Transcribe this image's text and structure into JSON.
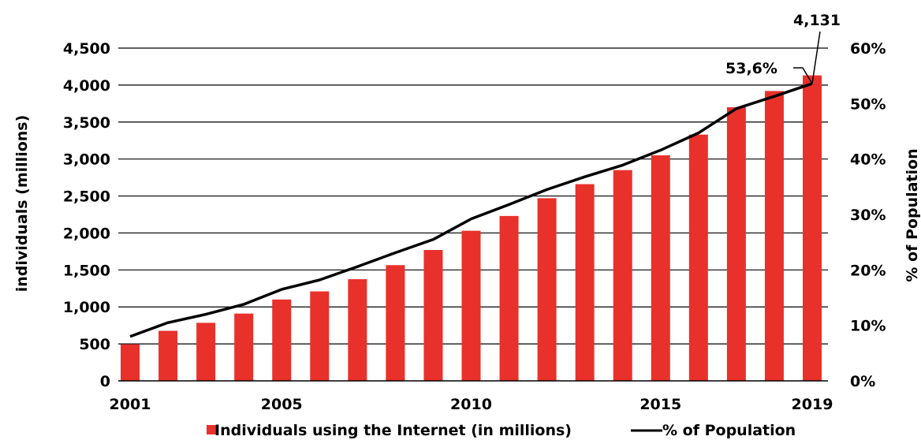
{
  "chart_data": {
    "type": "bar",
    "x": [
      2001,
      2002,
      2003,
      2004,
      2005,
      2006,
      2007,
      2008,
      2009,
      2010,
      2011,
      2012,
      2013,
      2014,
      2015,
      2016,
      2017,
      2018,
      2019
    ],
    "x_tick_labels": [
      "2001",
      "2005",
      "2010",
      "2015",
      "2019"
    ],
    "series": [
      {
        "name": "Individuals using the Internet (in millions)",
        "type": "bar",
        "axis": "left",
        "color": "#e8312a",
        "values": [
          495,
          677,
          785,
          910,
          1100,
          1210,
          1375,
          1565,
          1770,
          2030,
          2230,
          2470,
          2660,
          2850,
          3050,
          3330,
          3700,
          3920,
          4131
        ]
      },
      {
        "name": "% of Population",
        "type": "line",
        "axis": "right",
        "color": "#000000",
        "values": [
          8.0,
          10.5,
          12.0,
          13.8,
          16.5,
          18.2,
          20.6,
          23.1,
          25.5,
          29.2,
          31.8,
          34.5,
          36.8,
          38.9,
          41.6,
          44.7,
          49.1,
          51.3,
          53.6
        ]
      }
    ],
    "y_left": {
      "label": "individuals (millions)",
      "range": [
        0,
        4500
      ],
      "tick_labels": [
        "0",
        "500",
        "1,000",
        "1,500",
        "2,000",
        "2,500",
        "3,000",
        "3,500",
        "4,000",
        "4,500"
      ]
    },
    "y_right": {
      "label": "% of Population",
      "range": [
        0,
        60
      ],
      "tick_labels": [
        "0%",
        "10%",
        "20%",
        "30%",
        "40%",
        "50%",
        "60%"
      ]
    },
    "annotations": {
      "last_bar_value": "4,131",
      "last_percent": "53,6%"
    },
    "grid": "horizontal",
    "legend_position": "bottom"
  }
}
